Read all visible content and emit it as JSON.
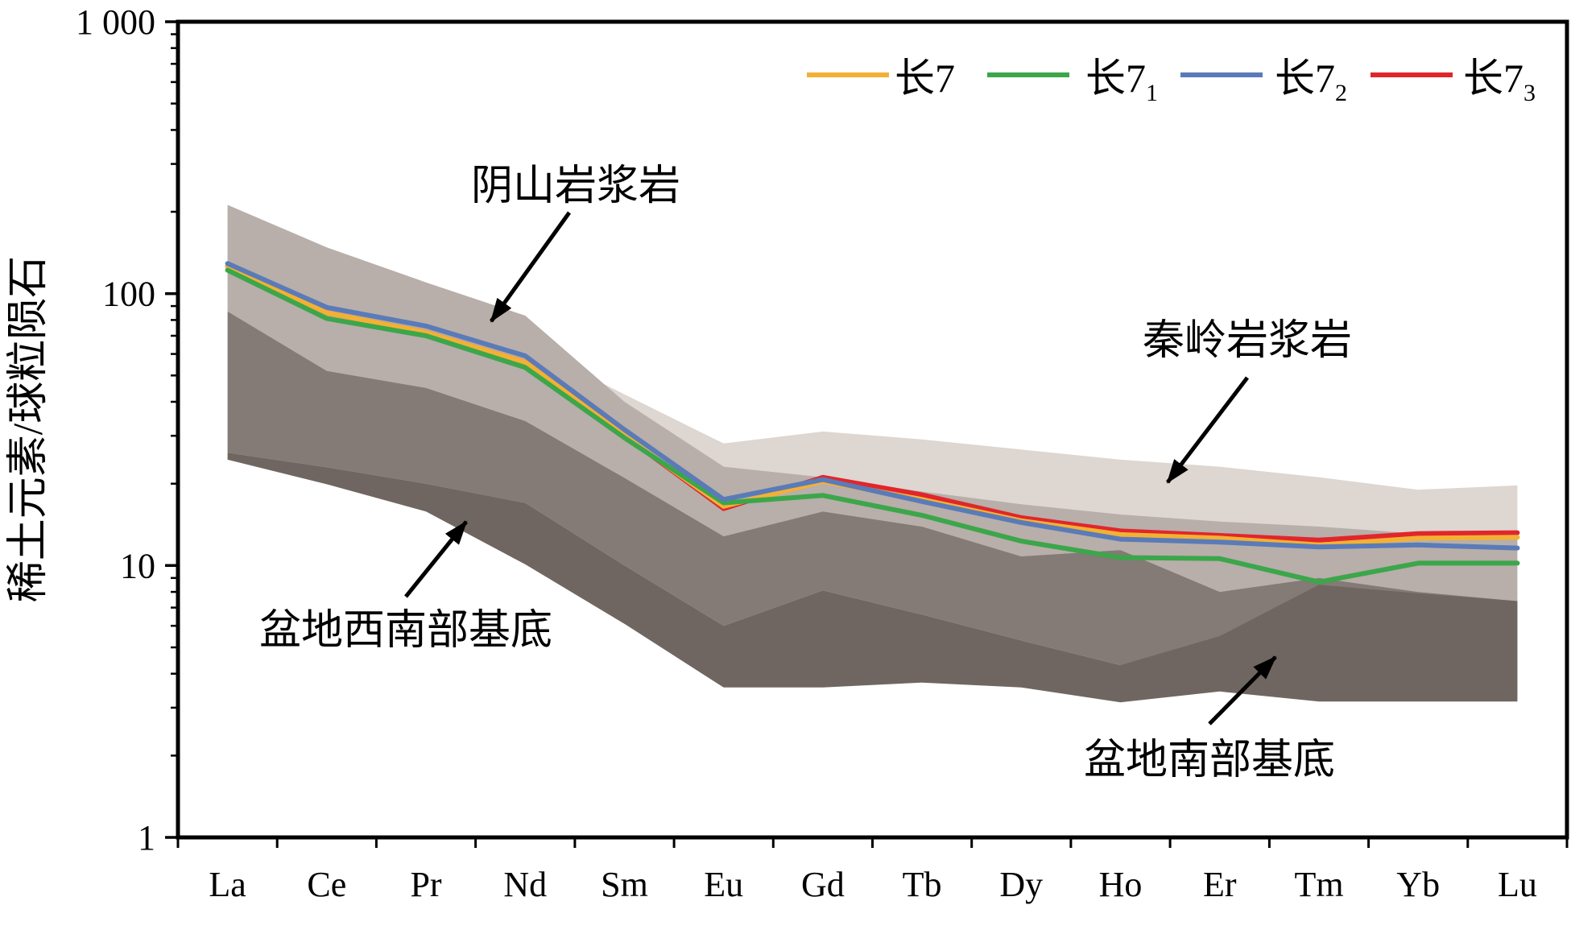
{
  "chart_data": {
    "type": "line",
    "categories": [
      "La",
      "Ce",
      "Pr",
      "Nd",
      "Sm",
      "Eu",
      "Gd",
      "Tb",
      "Dy",
      "Ho",
      "Er",
      "Tm",
      "Yb",
      "Lu"
    ],
    "ylabel": "稀土元素/球粒陨石",
    "yscale": "log",
    "ylim": [
      1,
      1000
    ],
    "yticks": [
      {
        "value": 1,
        "label": "1"
      },
      {
        "value": 10,
        "label": "10"
      },
      {
        "value": 100,
        "label": "100"
      },
      {
        "value": 1000,
        "label": "1 000"
      }
    ],
    "grid": false,
    "legend": "top-right",
    "series": [
      {
        "name": "长7",
        "color": "#f2b134",
        "values": [
          126,
          85,
          72,
          56,
          30,
          16.5,
          20.4,
          17.5,
          14.6,
          13.0,
          12.6,
          11.9,
          12.6,
          12.7
        ]
      },
      {
        "name": "长7₁",
        "color": "#3ca64a",
        "values": [
          122,
          81,
          70,
          53.5,
          29.5,
          17.0,
          18.1,
          15.3,
          12.3,
          10.7,
          10.6,
          8.7,
          10.2,
          10.2
        ]
      },
      {
        "name": "长7₂",
        "color": "#5a7bb8",
        "values": [
          129,
          89,
          76,
          59,
          31.6,
          17.5,
          20.7,
          17.2,
          14.4,
          12.5,
          12.2,
          11.7,
          11.9,
          11.6
        ]
      },
      {
        "name": "长7₃",
        "color": "#e1262b",
        "values": [
          126,
          85,
          72,
          56,
          30,
          16.2,
          21.1,
          18.2,
          15.0,
          13.4,
          12.9,
          12.4,
          13.1,
          13.2
        ]
      }
    ],
    "bands": [
      {
        "name": "秦岭岩浆岩",
        "color": "#ddd6d1",
        "upper": [
          null,
          null,
          null,
          65,
          42.6,
          28.1,
          31.1,
          29.1,
          26.7,
          24.5,
          23.1,
          21.1,
          19.0,
          19.7
        ],
        "lower": [
          null,
          null,
          null,
          34,
          21,
          12.8,
          15.8,
          13.9,
          10.8,
          11.4,
          8.0,
          9.0,
          8.0,
          7.4
        ]
      },
      {
        "name": "阴山岩浆岩",
        "color": "#b8aeaa",
        "upper": [
          212,
          148,
          110,
          83,
          40,
          23.1,
          21.1,
          18.7,
          16.8,
          15.4,
          14.5,
          13.9,
          13.1,
          12.5
        ],
        "lower": [
          86,
          52,
          45,
          34,
          21,
          12.8,
          15.8,
          13.9,
          10.8,
          11.4,
          8.0,
          9.0,
          8.0,
          7.4
        ]
      },
      {
        "name": "盆地西南部基底",
        "color": "#847a76",
        "upper": [
          86,
          52,
          45,
          34,
          21,
          12.8,
          15.8,
          13.9,
          10.8,
          11.4,
          8.0,
          9.0,
          8.0,
          7.4
        ],
        "lower": [
          26,
          23,
          20,
          17,
          10,
          6.0,
          8.1,
          6.6,
          5.3,
          4.3,
          3.5,
          3.2,
          3.2,
          3.2
        ]
      },
      {
        "name": "盆地南部基底",
        "color": "#706661",
        "upper": [
          26,
          23,
          20,
          17,
          10,
          6.0,
          8.1,
          6.6,
          5.3,
          4.3,
          5.5,
          8.5,
          7.9,
          7.4
        ],
        "lower": [
          24.5,
          19.9,
          15.8,
          10.1,
          6.1,
          3.56,
          3.56,
          3.71,
          3.56,
          3.14,
          3.44,
          3.16,
          3.16,
          3.16
        ]
      }
    ]
  }
}
